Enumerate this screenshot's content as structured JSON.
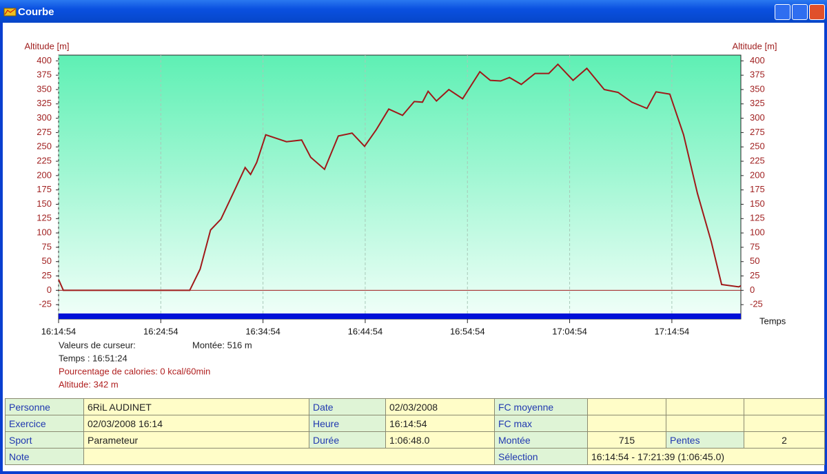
{
  "window": {
    "title": "Courbe"
  },
  "chart_data": {
    "type": "line",
    "y_label": "Altitude [m]",
    "y2_label": "Altitude [m]",
    "x_label": "Temps",
    "x": [
      "16:14:54",
      "16:15:22",
      "16:27:44",
      "16:28:45",
      "16:29:46",
      "16:30:47",
      "16:32:08",
      "16:33:09",
      "16:33:41",
      "16:34:17",
      "16:35:10",
      "16:36:11",
      "16:37:12",
      "16:38:41",
      "16:39:34",
      "16:40:55",
      "16:42:16",
      "16:43:37",
      "16:44:50",
      "16:45:59",
      "16:47:12",
      "16:48:33",
      "16:49:42",
      "16:50:30",
      "16:51:03",
      "16:51:52",
      "16:53:05",
      "16:54:26",
      "16:56:07",
      "16:57:08",
      "16:58:09",
      "16:59:01",
      "17:00:10",
      "17:01:31",
      "17:02:52",
      "17:03:45",
      "17:05:14",
      "17:06:35",
      "17:08:17",
      "17:09:38",
      "17:10:59",
      "17:12:28",
      "17:13:21",
      "17:14:42",
      "17:16:03",
      "17:17:24",
      "17:18:45",
      "17:19:46",
      "17:21:27",
      "17:21:39"
    ],
    "values": [
      19,
      0,
      0,
      37,
      105,
      124,
      175,
      214,
      202,
      223,
      271,
      265,
      259,
      262,
      232,
      211,
      269,
      274,
      251,
      280,
      316,
      305,
      329,
      328,
      347,
      330,
      350,
      334,
      381,
      366,
      365,
      371,
      359,
      378,
      378,
      394,
      366,
      387,
      350,
      345,
      328,
      317,
      346,
      342,
      271,
      169,
      85,
      10,
      6,
      8
    ],
    "color": "#a01818",
    "xlim": [
      "16:14:54",
      "17:21:39"
    ],
    "xticks": [
      "16:14:54",
      "16:24:54",
      "16:34:54",
      "16:44:54",
      "16:54:54",
      "17:04:54",
      "17:14:54"
    ],
    "ylim": [
      -50,
      410
    ],
    "yticks": [
      -25,
      0,
      25,
      50,
      75,
      100,
      125,
      150,
      175,
      200,
      225,
      250,
      275,
      300,
      325,
      350,
      375,
      400
    ],
    "y2lim": [
      -50,
      410
    ],
    "y2ticks": [
      -25,
      0,
      25,
      50,
      75,
      100,
      125,
      150,
      175,
      200,
      225,
      250,
      275,
      300,
      325,
      350,
      375,
      400
    ],
    "hlines": [
      0
    ],
    "grid": true
  },
  "cursor": {
    "heading": "Valeurs de curseur:",
    "climb": "Montée: 516 m",
    "time": "Temps : 16:51:24",
    "calories": "Pourcentage de calories: 0 kcal/60min",
    "altitude": "Altitude: 342 m"
  },
  "info_table": {
    "rows": [
      [
        "Personne",
        "6RiL AUDINET",
        "Date",
        "02/03/2008",
        "FC moyenne",
        null,
        null,
        null
      ],
      [
        "Exercice",
        "02/03/2008 16:14",
        "Heure",
        "16:14:54",
        "FC max",
        null,
        null,
        null
      ],
      [
        "Sport",
        "Parameteur",
        "Durée",
        "1:06:48.0",
        "Montée",
        "715",
        "Pentes",
        "2"
      ],
      [
        "Note",
        null,
        "Sélection",
        "16:14:54 - 17:21:39 (1:06:45.0)"
      ]
    ]
  }
}
